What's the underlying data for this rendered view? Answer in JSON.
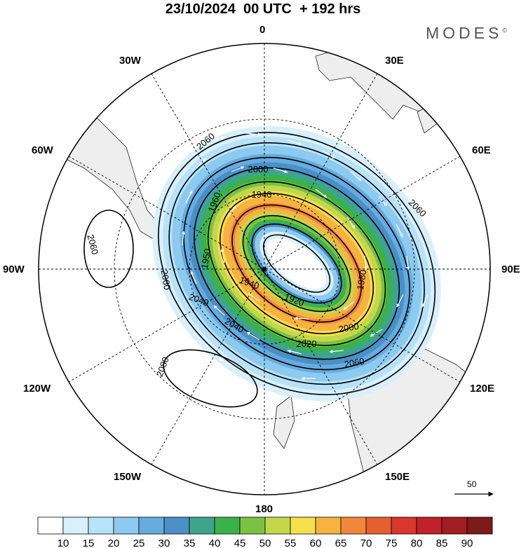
{
  "title": "23/10/2024  00 UTC  + 192 hrs",
  "logo": {
    "text": "MODES",
    "mark": "©"
  },
  "longitude_labels": {
    "n0": "0",
    "n30e": "30E",
    "n60e": "60E",
    "n90e": "90E",
    "n120e": "120E",
    "n150e": "150E",
    "n180": "180",
    "n150w": "150W",
    "n120w": "120W",
    "n90w": "90W",
    "n60w": "60W",
    "n30w": "30W"
  },
  "contour_labels": [
    "2060",
    "2060",
    "2000",
    "1940",
    "1960",
    "1950",
    "1940",
    "1920",
    "1980",
    "2000",
    "2020",
    "2060",
    "2040",
    "2040",
    "2060",
    "2060",
    "2080"
  ],
  "reference_vector": {
    "label": "50"
  },
  "colorbar": {
    "labels": [
      "10",
      "15",
      "20",
      "25",
      "30",
      "35",
      "40",
      "45",
      "50",
      "55",
      "60",
      "65",
      "70",
      "75",
      "80",
      "85",
      "90"
    ],
    "colors": [
      "#ffffff",
      "#d8f0fb",
      "#b7e2f7",
      "#8ccaf0",
      "#66acde",
      "#4a8fc6",
      "#3fa48c",
      "#3ab249",
      "#7cc242",
      "#c2d84a",
      "#f7df4d",
      "#f7b240",
      "#f1873a",
      "#e65f30",
      "#d9362c",
      "#c0212a",
      "#a11d21",
      "#7d1a1a"
    ]
  },
  "chart_data": {
    "type": "polar-stereographic map",
    "projection": "south polar stereographic",
    "variable_shading": "wind speed",
    "contours": "geopotential height",
    "valid_time": "23/10/2024 00 UTC",
    "forecast_lead": "+ 192 hrs",
    "contour_values": [
      1920,
      1940,
      1960,
      1980,
      2000,
      2020,
      2040,
      2060,
      2080
    ],
    "shading_levels": [
      10,
      15,
      20,
      25,
      30,
      35,
      40,
      45,
      50,
      55,
      60,
      65,
      70,
      75,
      80,
      85,
      90
    ],
    "reference_vector_magnitude": 50
  }
}
